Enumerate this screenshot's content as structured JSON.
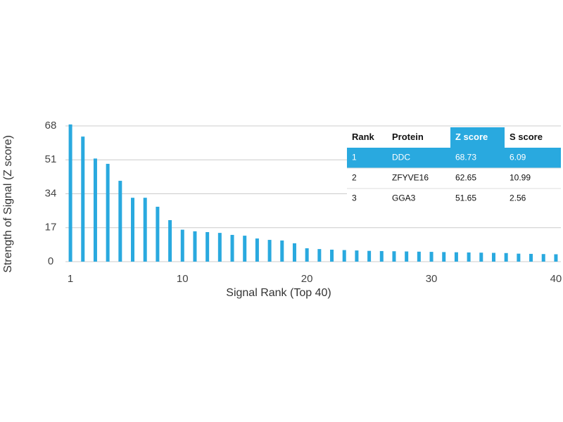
{
  "chart_data": {
    "type": "bar",
    "x_label": "Signal Rank (Top 40)",
    "y_label": "Strength of Signal (Z score)",
    "x": [
      1,
      2,
      3,
      4,
      5,
      6,
      7,
      8,
      9,
      10,
      11,
      12,
      13,
      14,
      15,
      16,
      17,
      18,
      19,
      20,
      21,
      22,
      23,
      24,
      25,
      26,
      27,
      28,
      29,
      30,
      31,
      32,
      33,
      34,
      35,
      36,
      37,
      38,
      39,
      40
    ],
    "values": [
      68.73,
      62.65,
      51.65,
      49,
      40.5,
      32,
      32,
      27.5,
      20.8,
      16,
      15.2,
      14.8,
      14.4,
      13.4,
      13,
      11.6,
      10.9,
      10.6,
      9.2,
      6.7,
      6.3,
      6,
      5.8,
      5.6,
      5.4,
      5.3,
      5.2,
      5.1,
      5,
      4.9,
      4.8,
      4.7,
      4.6,
      4.5,
      4.4,
      4.3,
      4,
      3.9,
      3.8,
      3.7
    ],
    "color": "#29a9df",
    "xlim": [
      0.6,
      40.4
    ],
    "xticks": [
      1,
      10,
      20,
      30,
      40
    ],
    "ylim": [
      0,
      68
    ],
    "yticks": [
      0,
      17,
      34,
      51,
      68
    ],
    "grid": true,
    "table": {
      "columns": [
        "Rank",
        "Protein",
        "Z score",
        "S score"
      ],
      "rows": [
        [
          "1",
          "DDC",
          "68.73",
          "6.09"
        ],
        [
          "2",
          "ZFYVE16",
          "62.65",
          "10.99"
        ],
        [
          "3",
          "GGA3",
          "51.65",
          "2.56"
        ]
      ],
      "highlight_color": "#29a9df"
    }
  }
}
